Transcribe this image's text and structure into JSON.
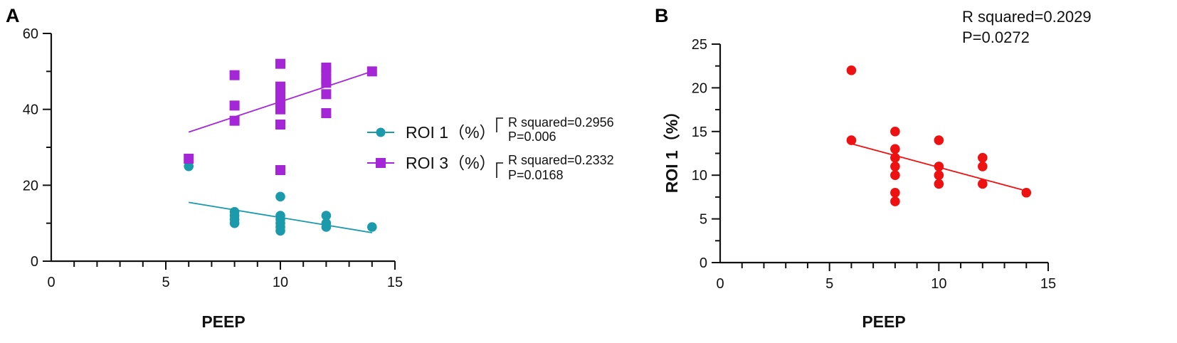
{
  "chart_data": [
    {
      "panel": "A",
      "type": "scatter",
      "xlabel": "PEEP",
      "ylabel": "",
      "xlim": [
        0,
        15
      ],
      "ylim": [
        0,
        60
      ],
      "xticks": [
        0,
        5,
        10,
        15
      ],
      "yticks": [
        0,
        20,
        40,
        60
      ],
      "grid": false,
      "legend_position": "right",
      "series": [
        {
          "name": "ROI 1（%）",
          "marker": "circle",
          "color": "#1a9aab",
          "points": [
            [
              6,
              25
            ],
            [
              8,
              13
            ],
            [
              8,
              12
            ],
            [
              8,
              11
            ],
            [
              8,
              10
            ],
            [
              10,
              17
            ],
            [
              10,
              12
            ],
            [
              10,
              11
            ],
            [
              10,
              10
            ],
            [
              10,
              9
            ],
            [
              10,
              8
            ],
            [
              12,
              12
            ],
            [
              12,
              10
            ],
            [
              12,
              9
            ],
            [
              14,
              9
            ]
          ],
          "fit": {
            "x": [
              6,
              14
            ],
            "y": [
              15.5,
              7.5
            ]
          },
          "stats": [
            "R squared=0.2956",
            "P=0.006"
          ]
        },
        {
          "name": "ROI 3（%）",
          "marker": "square",
          "color": "#a526d6",
          "points": [
            [
              6,
              27
            ],
            [
              8,
              49
            ],
            [
              8,
              41
            ],
            [
              8,
              37
            ],
            [
              10,
              52
            ],
            [
              10,
              46
            ],
            [
              10,
              44
            ],
            [
              10,
              43
            ],
            [
              10,
              41
            ],
            [
              10,
              40
            ],
            [
              10,
              36
            ],
            [
              10,
              24
            ],
            [
              12,
              51
            ],
            [
              12,
              50
            ],
            [
              12,
              48
            ],
            [
              12,
              47
            ],
            [
              12,
              44
            ],
            [
              12,
              39
            ],
            [
              14,
              50
            ]
          ],
          "fit": {
            "x": [
              6,
              14
            ],
            "y": [
              34,
              50
            ]
          },
          "stats": [
            "R squared=0.2332",
            "P=0.0168"
          ]
        }
      ]
    },
    {
      "panel": "B",
      "type": "scatter",
      "xlabel": "PEEP",
      "ylabel": "ROI 1（%）",
      "xlim": [
        0,
        15
      ],
      "ylim": [
        0,
        25
      ],
      "xticks": [
        0,
        5,
        10,
        15
      ],
      "yticks": [
        0,
        5,
        10,
        15,
        20,
        25
      ],
      "grid": false,
      "series": [
        {
          "name": "ROI 1",
          "marker": "circle",
          "color": "#ee1111",
          "points": [
            [
              6,
              22
            ],
            [
              6,
              14
            ],
            [
              8,
              15
            ],
            [
              8,
              13
            ],
            [
              8,
              12
            ],
            [
              8,
              11
            ],
            [
              8,
              10
            ],
            [
              8,
              8
            ],
            [
              8,
              7
            ],
            [
              10,
              14
            ],
            [
              10,
              11
            ],
            [
              10,
              10
            ],
            [
              10,
              9
            ],
            [
              12,
              12
            ],
            [
              12,
              11
            ],
            [
              12,
              9
            ],
            [
              14,
              8
            ]
          ],
          "fit": {
            "x": [
              6,
              14
            ],
            "y": [
              13.6,
              8.2
            ]
          },
          "stats": [
            "R squared=0.2029",
            "P=0.0272"
          ]
        }
      ]
    }
  ]
}
